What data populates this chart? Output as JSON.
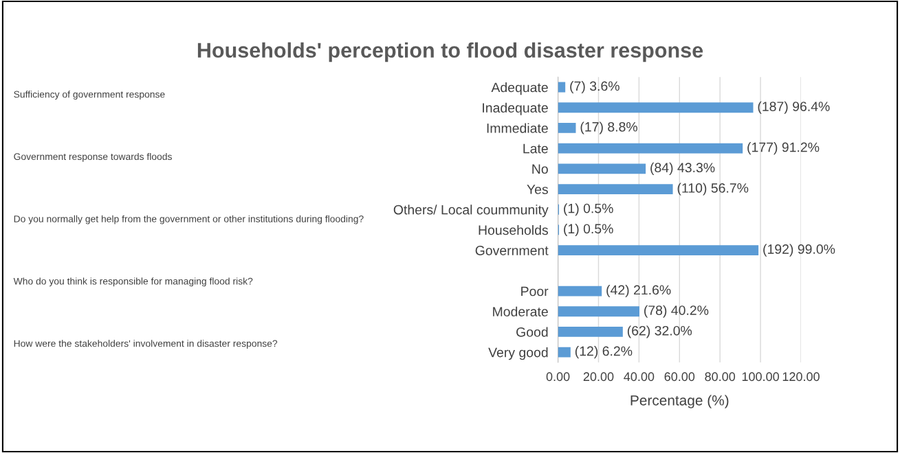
{
  "chart_data": {
    "type": "bar",
    "orientation": "horizontal",
    "title": "Households' perception to flood disaster response",
    "xlabel": "Percentage (%)",
    "categories": [
      "Adequate",
      "Inadequate",
      "Immediate",
      "Late",
      "No",
      "Yes",
      "Others/ Local coummunity",
      "Households",
      "Government",
      null,
      "Poor",
      "Moderate",
      "Good",
      "Very good"
    ],
    "values": [
      3.6,
      96.4,
      8.8,
      91.2,
      43.3,
      56.7,
      0.5,
      0.5,
      99.0,
      null,
      21.6,
      40.2,
      32.0,
      6.2
    ],
    "value_labels": [
      "(7) 3.6%",
      "(187) 96.4%",
      "(17) 8.8%",
      "(177) 91.2%",
      "(84) 43.3%",
      "(110) 56.7%",
      "(1) 0.5%",
      "(1) 0.5%",
      "(192) 99.0%",
      null,
      "(42) 21.6%",
      "(78) 40.2%",
      "(62) 32.0%",
      "(12) 6.2%"
    ],
    "color": "#5b9bd5",
    "xlim": [
      0,
      120
    ],
    "xticks": [
      {
        "value": 0,
        "label": "0.00"
      },
      {
        "value": 20,
        "label": "20.00"
      },
      {
        "value": 40,
        "label": "40.00"
      },
      {
        "value": 60,
        "label": "60.00"
      },
      {
        "value": 80,
        "label": "80.00"
      },
      {
        "value": 100,
        "label": "100.00"
      },
      {
        "value": 120,
        "label": "120.00"
      }
    ],
    "grid": "x",
    "annotations": [
      "Sufficiency of government response",
      "Government response towards floods",
      "Do you normally get help from the government or other institutions during flooding?",
      "Who do you think is responsible for managing flood risk?",
      "How were the stakeholders' involvement in disaster response?"
    ]
  }
}
